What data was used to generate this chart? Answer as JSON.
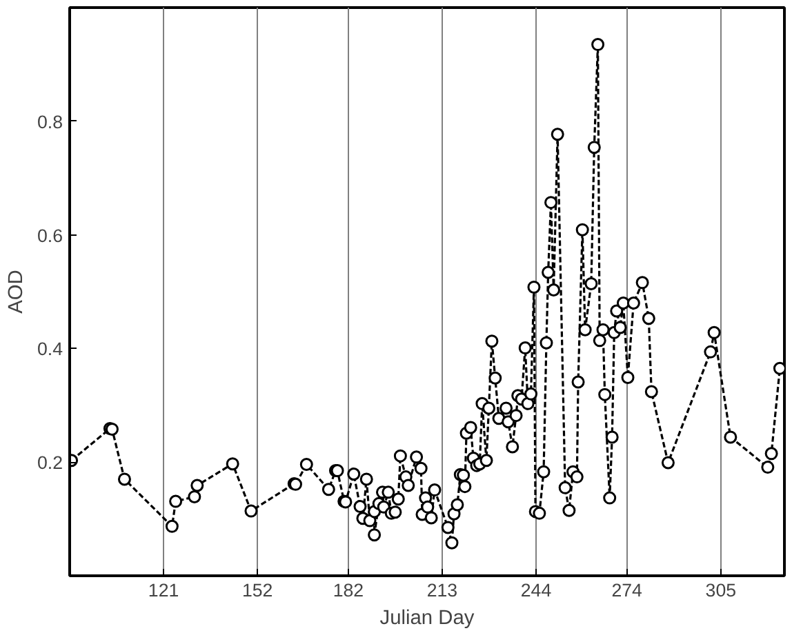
{
  "chart_data": {
    "type": "line",
    "xlabel": "Julian Day",
    "ylabel": "AOD",
    "xlim": [
      90,
      326
    ],
    "ylim": [
      0,
      1
    ],
    "xticks": [
      121,
      152,
      182,
      213,
      244,
      274,
      305
    ],
    "yticks": [
      0.2,
      0.4,
      0.6,
      0.8
    ],
    "grid": "x",
    "marker": "circle",
    "line_style": "dashed",
    "x": [
      90.6,
      103.3,
      104,
      108.1,
      123.8,
      125,
      131.2,
      132.1,
      143.8,
      149.9,
      164.1,
      164.6,
      168.2,
      175.5,
      177.8,
      178.4,
      180.6,
      181.1,
      183.8,
      185.9,
      186.8,
      188,
      189.1,
      190.6,
      190.6,
      192.1,
      193.3,
      193.7,
      195.2,
      196.2,
      197.5,
      198.5,
      199.2,
      201,
      201.8,
      204.5,
      206,
      206.4,
      207.5,
      208.2,
      209.4,
      210.5,
      214.9,
      216.2,
      216.9,
      218,
      219,
      220,
      220.5,
      221,
      222.4,
      223.3,
      224.4,
      225.4,
      226.2,
      227.6,
      228.4,
      229.4,
      230.5,
      231.7,
      234.1,
      234.8,
      236.2,
      237.4,
      238,
      239.2,
      240.4,
      241.3,
      242.3,
      243.3,
      243.8,
      245.1,
      246.5,
      247.4,
      248,
      248.9,
      249.8,
      251.1,
      253.6,
      254.9,
      256.2,
      257.5,
      257.9,
      259.3,
      260.2,
      262.2,
      263.2,
      264.4,
      265,
      266.1,
      266.7,
      268.3,
      269.1,
      269.8,
      270.6,
      271.8,
      272.8,
      274.3,
      276.2,
      279.1,
      281.2,
      282.1,
      287.6,
      301.6,
      302.8,
      308.2,
      320.5,
      321.7,
      324.5
    ],
    "series": [
      {
        "color": "#000000",
        "values": [
          0.203,
          0.259,
          0.258,
          0.17,
          0.087,
          0.131,
          0.139,
          0.159,
          0.197,
          0.114,
          0.162,
          0.161,
          0.196,
          0.152,
          0.185,
          0.185,
          0.131,
          0.13,
          0.179,
          0.122,
          0.101,
          0.17,
          0.097,
          0.113,
          0.072,
          0.127,
          0.147,
          0.121,
          0.147,
          0.11,
          0.112,
          0.135,
          0.211,
          0.174,
          0.159,
          0.209,
          0.189,
          0.108,
          0.137,
          0.121,
          0.102,
          0.151,
          0.085,
          0.058,
          0.109,
          0.125,
          0.178,
          0.177,
          0.157,
          0.251,
          0.261,
          0.207,
          0.194,
          0.197,
          0.303,
          0.203,
          0.295,
          0.413,
          0.348,
          0.277,
          0.295,
          0.271,
          0.227,
          0.282,
          0.317,
          0.311,
          0.401,
          0.303,
          0.32,
          0.508,
          0.113,
          0.11,
          0.183,
          0.41,
          0.534,
          0.657,
          0.503,
          0.777,
          0.155,
          0.115,
          0.183,
          0.174,
          0.341,
          0.609,
          0.433,
          0.514,
          0.754,
          0.935,
          0.414,
          0.433,
          0.319,
          0.137,
          0.244,
          0.428,
          0.466,
          0.437,
          0.48,
          0.349,
          0.48,
          0.516,
          0.453,
          0.324,
          0.199,
          0.394,
          0.428,
          0.244,
          0.191,
          0.215,
          0.365
        ]
      }
    ]
  }
}
